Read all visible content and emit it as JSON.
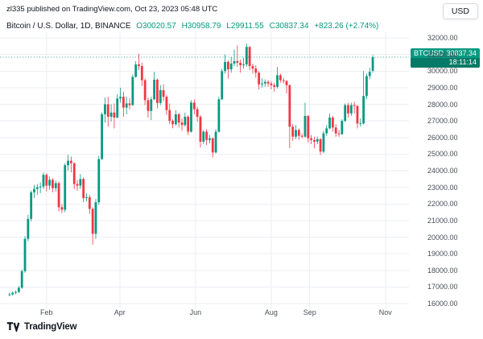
{
  "attribution": "zl335 published on TradingView.com, Oct 23, 2023 05:48 UTC",
  "currency_button": "USD",
  "legend": {
    "symbol": "Bitcoin / U.S. Dollar, 1D, BINANCE",
    "ohlc": [
      "O30020.57",
      "H30958.79",
      "L29911.55",
      "C30837.34",
      "+823.26 (+2.74%)"
    ]
  },
  "price_label": {
    "symbol": "BTCUSD",
    "price": "30837.34",
    "countdown": "18:11:14"
  },
  "footer": {
    "brand": "TradingView"
  },
  "colors": {
    "up": "#089981",
    "down": "#f23645",
    "grid": "#ebeef3",
    "axis_text": "#4a4f59",
    "accent_green": "#089981"
  },
  "chart_data": {
    "type": "candlestick",
    "title": "Bitcoin / U.S. Dollar",
    "exchange": "BINANCE",
    "interval": "1D",
    "last_price": 30837.34,
    "price_axis_labels": [
      "32000.00",
      "31000.00",
      "30000.00",
      "29000.00",
      "28000.00",
      "27000.00",
      "26000.00",
      "25000.00",
      "24000.00",
      "23000.00",
      "22000.00",
      "21000.00",
      "20000.00",
      "19000.00",
      "18000.00",
      "17000.00",
      "16000.00"
    ],
    "time_axis": [
      {
        "label": "Feb",
        "pos": 12.5
      },
      {
        "label": "Apr",
        "pos": 36.3
      },
      {
        "label": "Jun",
        "pos": 60.9
      },
      {
        "label": "Aug",
        "pos": 85.5
      },
      {
        "label": "Sep",
        "pos": 98.0
      },
      {
        "label": "Nov",
        "pos": 122.6
      }
    ],
    "candles_ohlc": [
      [
        16520,
        16680,
        16440,
        16550
      ],
      [
        16550,
        16730,
        16480,
        16650
      ],
      [
        16650,
        16790,
        16560,
        16700
      ],
      [
        16700,
        17060,
        16640,
        16950
      ],
      [
        16950,
        18050,
        16900,
        17950
      ],
      [
        17950,
        20060,
        17850,
        19900
      ],
      [
        19900,
        21350,
        19750,
        21100
      ],
      [
        21100,
        22800,
        20950,
        22700
      ],
      [
        22700,
        23150,
        22350,
        22900
      ],
      [
        22900,
        23200,
        22550,
        23000
      ],
      [
        23000,
        23300,
        22650,
        23050
      ],
      [
        23050,
        23900,
        22900,
        23750
      ],
      [
        23750,
        23850,
        22750,
        23100
      ],
      [
        23100,
        23650,
        22850,
        23450
      ],
      [
        23450,
        23550,
        22700,
        22950
      ],
      [
        22950,
        23400,
        22750,
        23250
      ],
      [
        23250,
        23350,
        21550,
        21800
      ],
      [
        21800,
        22000,
        21450,
        21650
      ],
      [
        21650,
        24450,
        21500,
        24330
      ],
      [
        24330,
        24950,
        24000,
        24600
      ],
      [
        24600,
        24850,
        23900,
        24450
      ],
      [
        24450,
        24500,
        22900,
        23200
      ],
      [
        23200,
        23450,
        22800,
        23100
      ],
      [
        23100,
        23800,
        22900,
        23500
      ],
      [
        23500,
        23600,
        22100,
        22350
      ],
      [
        22350,
        22650,
        22150,
        22400
      ],
      [
        22400,
        22550,
        21400,
        21700
      ],
      [
        21700,
        21800,
        19550,
        20200
      ],
      [
        20200,
        22300,
        19900,
        22100
      ],
      [
        22100,
        24900,
        21950,
        24700
      ],
      [
        24700,
        27500,
        24650,
        27400
      ],
      [
        27400,
        28400,
        26900,
        28000
      ],
      [
        28000,
        28450,
        26650,
        27250
      ],
      [
        27250,
        28000,
        26950,
        27500
      ],
      [
        27500,
        28050,
        26550,
        27200
      ],
      [
        27200,
        28600,
        27150,
        28350
      ],
      [
        28350,
        29000,
        28100,
        28450
      ],
      [
        28450,
        28750,
        27250,
        27800
      ],
      [
        27800,
        28450,
        27400,
        28050
      ],
      [
        28050,
        28350,
        27700,
        27950
      ],
      [
        27950,
        29800,
        27900,
        29650
      ],
      [
        29650,
        30600,
        29600,
        30400
      ],
      [
        30400,
        31050,
        30050,
        30300
      ],
      [
        30300,
        30500,
        29100,
        29450
      ],
      [
        29450,
        29550,
        27950,
        28250
      ],
      [
        28250,
        28400,
        27200,
        27600
      ],
      [
        27600,
        28450,
        27050,
        28300
      ],
      [
        28300,
        29950,
        28250,
        29480
      ],
      [
        29480,
        29550,
        27750,
        28080
      ],
      [
        28080,
        29150,
        27950,
        28850
      ],
      [
        28850,
        29200,
        28200,
        28450
      ],
      [
        28450,
        28550,
        27350,
        27650
      ],
      [
        27650,
        28050,
        26800,
        27000
      ],
      [
        27000,
        27100,
        26550,
        26800
      ],
      [
        26800,
        27650,
        26700,
        27400
      ],
      [
        27400,
        27500,
        26600,
        26900
      ],
      [
        26900,
        27150,
        26400,
        26750
      ],
      [
        26750,
        27500,
        26650,
        27250
      ],
      [
        27250,
        27350,
        26150,
        26350
      ],
      [
        26350,
        28250,
        26300,
        28100
      ],
      [
        28100,
        28300,
        27400,
        27700
      ],
      [
        27700,
        27850,
        26950,
        27250
      ],
      [
        27250,
        27350,
        25400,
        25750
      ],
      [
        25750,
        26450,
        25600,
        26350
      ],
      [
        26350,
        26500,
        25550,
        25850
      ],
      [
        25850,
        26150,
        25650,
        25950
      ],
      [
        25950,
        26000,
        24800,
        25100
      ],
      [
        25100,
        26500,
        25050,
        26350
      ],
      [
        26350,
        28450,
        26300,
        28300
      ],
      [
        28300,
        30150,
        28250,
        30000
      ],
      [
        30000,
        31000,
        29850,
        30550
      ],
      [
        30550,
        30650,
        29550,
        30100
      ],
      [
        30100,
        30850,
        29900,
        30450
      ],
      [
        30450,
        31300,
        30300,
        30600
      ],
      [
        30600,
        31550,
        30250,
        30500
      ],
      [
        30500,
        30700,
        29900,
        30350
      ],
      [
        30350,
        30800,
        30150,
        30400
      ],
      [
        30400,
        31650,
        30250,
        31450
      ],
      [
        31450,
        31500,
        30050,
        30300
      ],
      [
        30300,
        30450,
        29850,
        30150
      ],
      [
        30150,
        30350,
        29600,
        29900
      ],
      [
        29900,
        30000,
        28900,
        29200
      ],
      [
        29200,
        29550,
        29000,
        29250
      ],
      [
        29250,
        29500,
        29050,
        29350
      ],
      [
        29350,
        29450,
        29050,
        29250
      ],
      [
        29250,
        29400,
        28900,
        29150
      ],
      [
        29150,
        29300,
        28750,
        29050
      ],
      [
        29050,
        30250,
        28950,
        29750
      ],
      [
        29750,
        29850,
        29300,
        29450
      ],
      [
        29450,
        29600,
        29250,
        29400
      ],
      [
        29400,
        29450,
        28650,
        29150
      ],
      [
        29150,
        29200,
        25350,
        26650
      ],
      [
        26650,
        26800,
        25800,
        26050
      ],
      [
        26050,
        26750,
        25900,
        26450
      ],
      [
        26450,
        26550,
        25850,
        26100
      ],
      [
        26100,
        26250,
        25950,
        26050
      ],
      [
        26050,
        28100,
        26000,
        27300
      ],
      [
        27300,
        27350,
        25700,
        25950
      ],
      [
        25950,
        26150,
        25600,
        25850
      ],
      [
        25850,
        26050,
        25350,
        25750
      ],
      [
        25750,
        26050,
        25600,
        25900
      ],
      [
        25900,
        25950,
        24950,
        25150
      ],
      [
        25150,
        26400,
        25050,
        26250
      ],
      [
        26250,
        26750,
        26100,
        26550
      ],
      [
        26550,
        27450,
        26500,
        27200
      ],
      [
        27200,
        27300,
        26350,
        26600
      ],
      [
        26600,
        26800,
        26050,
        26250
      ],
      [
        26250,
        26450,
        26050,
        26200
      ],
      [
        26200,
        27100,
        26150,
        27000
      ],
      [
        27000,
        28050,
        26950,
        27950
      ],
      [
        27950,
        28100,
        27200,
        27450
      ],
      [
        27450,
        28100,
        27300,
        27950
      ],
      [
        27950,
        28150,
        27450,
        27900
      ],
      [
        27900,
        27950,
        26550,
        26850
      ],
      [
        26850,
        27150,
        26650,
        26850
      ],
      [
        26850,
        30000,
        26800,
        28500
      ],
      [
        28500,
        29850,
        28300,
        29700
      ],
      [
        29700,
        30200,
        29500,
        29950
      ],
      [
        30020.57,
        30958.79,
        29911.55,
        30837.34
      ]
    ]
  }
}
